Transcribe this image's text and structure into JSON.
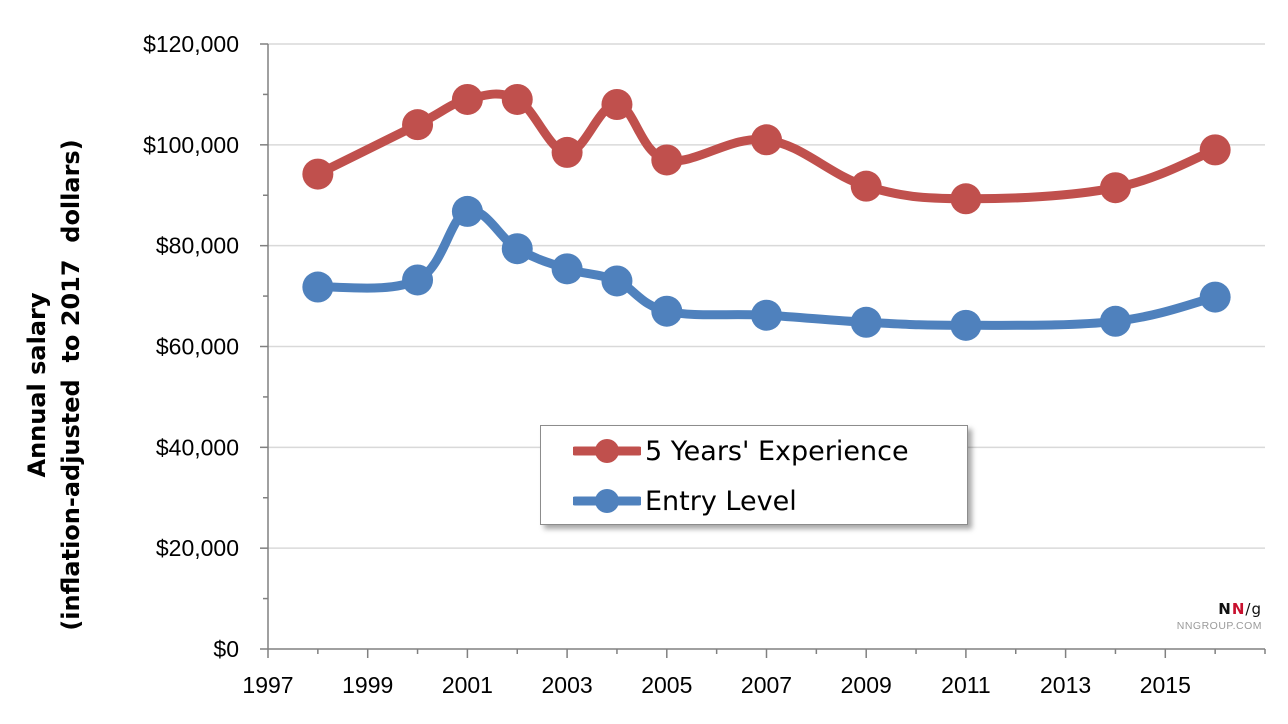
{
  "chart_data": {
    "type": "line",
    "title": "",
    "xlabel": "",
    "ylabel": [
      "Annual salary",
      "(inflation-adjusted  to 2017  dollars)"
    ],
    "xlim": [
      1997,
      2017
    ],
    "ylim": [
      0,
      120000
    ],
    "x_ticks": [
      1997,
      1999,
      2001,
      2003,
      2005,
      2007,
      2009,
      2011,
      2013,
      2015
    ],
    "y_ticks": [
      0,
      20000,
      40000,
      60000,
      80000,
      100000,
      120000
    ],
    "y_tick_labels": [
      "$0",
      "$20,000",
      "$40,000",
      "$60,000",
      "$80,000",
      "$100,000",
      "$120,000"
    ],
    "grid": "horizontal",
    "legend_position": "center",
    "series": [
      {
        "name": "5 Years' Experience",
        "color": "#c0504d",
        "x": [
          1998,
          2000,
          2001,
          2002,
          2003,
          2004,
          2005,
          2007,
          2009,
          2011,
          2014,
          2016
        ],
        "values": [
          94200,
          104000,
          109000,
          109000,
          98500,
          108000,
          97000,
          101000,
          91800,
          89300,
          91500,
          99000
        ]
      },
      {
        "name": "Entry Level",
        "color": "#4f81bd",
        "x": [
          1998,
          2000,
          2001,
          2002,
          2003,
          2004,
          2005,
          2007,
          2009,
          2011,
          2014,
          2016
        ],
        "values": [
          71800,
          73200,
          86800,
          79400,
          75400,
          73000,
          67000,
          66200,
          64800,
          64200,
          65000,
          69800
        ]
      }
    ]
  },
  "branding": {
    "logo_n1": "N",
    "logo_n2": "N",
    "logo_g": "/g",
    "site": "NNGROUP.COM"
  }
}
